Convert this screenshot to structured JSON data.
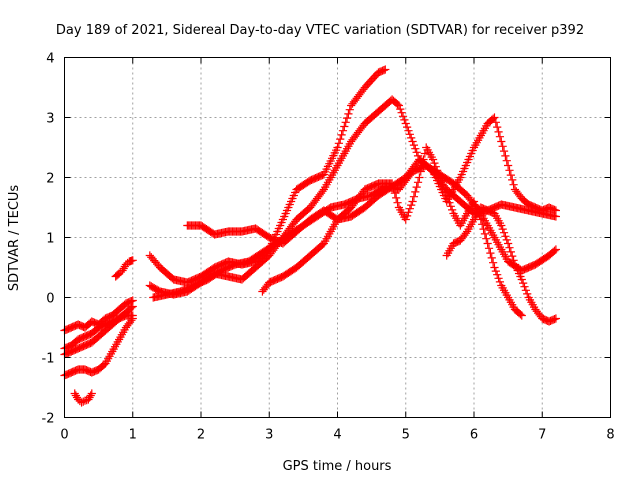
{
  "chart_data": {
    "type": "scatter",
    "title": "Day 189 of 2021, Sidereal Day-to-day VTEC variation (SDTVAR) for receiver p392",
    "xlabel": "GPS time / hours",
    "ylabel": "SDTVAR / TECUs",
    "xlim": [
      0,
      8
    ],
    "ylim": [
      -2,
      4
    ],
    "xticks": [
      0,
      1,
      2,
      3,
      4,
      5,
      6,
      7,
      8
    ],
    "yticks": [
      -2,
      -1,
      0,
      1,
      2,
      3,
      4
    ],
    "grid": true,
    "marker": "plus",
    "color": "#ff0000",
    "series": [
      {
        "x": [
          0.0,
          0.1,
          0.2,
          0.3,
          0.4,
          0.5,
          0.6,
          0.7,
          0.8,
          0.9,
          1.0
        ],
        "y": [
          -0.55,
          -0.5,
          -0.45,
          -0.5,
          -0.4,
          -0.45,
          -0.35,
          -0.3,
          -0.2,
          -0.1,
          -0.05
        ]
      },
      {
        "x": [
          0.0,
          0.1,
          0.2,
          0.3,
          0.4,
          0.5,
          0.6,
          0.7,
          0.8,
          0.9,
          1.0
        ],
        "y": [
          -0.85,
          -0.8,
          -0.7,
          -0.65,
          -0.6,
          -0.5,
          -0.45,
          -0.4,
          -0.35,
          -0.3,
          -0.3
        ]
      },
      {
        "x": [
          0.0,
          0.1,
          0.2,
          0.3,
          0.4,
          0.5,
          0.6,
          0.7,
          0.8,
          0.9,
          1.0
        ],
        "y": [
          -0.95,
          -0.9,
          -0.85,
          -0.8,
          -0.75,
          -0.65,
          -0.55,
          -0.45,
          -0.35,
          -0.25,
          -0.15
        ]
      },
      {
        "x": [
          0.0,
          0.1,
          0.2,
          0.3,
          0.4,
          0.5,
          0.6,
          0.7,
          0.8,
          0.9,
          1.0
        ],
        "y": [
          -1.3,
          -1.25,
          -1.2,
          -1.2,
          -1.25,
          -1.2,
          -1.1,
          -0.9,
          -0.7,
          -0.5,
          -0.35
        ]
      },
      {
        "x": [
          0.15,
          0.2,
          0.25,
          0.3,
          0.35,
          0.4
        ],
        "y": [
          -1.6,
          -1.7,
          -1.75,
          -1.72,
          -1.7,
          -1.6
        ]
      },
      {
        "x": [
          0.75,
          0.8,
          0.85,
          0.9,
          0.95,
          1.0
        ],
        "y": [
          0.35,
          0.4,
          0.45,
          0.55,
          0.6,
          0.62
        ]
      },
      {
        "x": [
          1.25,
          1.4,
          1.6,
          1.8,
          2.0,
          2.2,
          2.4,
          2.6,
          2.8,
          3.0,
          3.2,
          3.4,
          3.6,
          3.8,
          4.0,
          4.2,
          4.4,
          4.6,
          4.7
        ],
        "y": [
          0.7,
          0.5,
          0.3,
          0.25,
          0.35,
          0.5,
          0.6,
          0.55,
          0.6,
          0.8,
          1.3,
          1.8,
          1.95,
          2.05,
          2.5,
          3.2,
          3.5,
          3.75,
          3.8
        ]
      },
      {
        "x": [
          1.25,
          1.4,
          1.6,
          1.8,
          2.0,
          2.2,
          2.4,
          2.6,
          2.8,
          3.0,
          3.2,
          3.4,
          3.6,
          3.8,
          4.0,
          4.2,
          4.4,
          4.6,
          4.8,
          4.9,
          5.0,
          5.1,
          5.2,
          5.4,
          5.6,
          5.8,
          6.0,
          6.2,
          6.4,
          6.6,
          6.8,
          7.0,
          7.2
        ],
        "y": [
          0.2,
          0.1,
          0.05,
          0.1,
          0.25,
          0.4,
          0.35,
          0.3,
          0.5,
          0.7,
          1.0,
          1.3,
          1.5,
          1.8,
          2.2,
          2.6,
          2.9,
          3.1,
          3.3,
          3.2,
          2.9,
          2.6,
          2.3,
          2.1,
          1.8,
          1.6,
          1.4,
          1.45,
          1.55,
          1.5,
          1.45,
          1.4,
          1.35
        ]
      },
      {
        "x": [
          1.3,
          1.5,
          1.7,
          1.9,
          2.1,
          2.3,
          2.5,
          2.7,
          2.9,
          3.1,
          3.3,
          3.5,
          3.7,
          3.9,
          4.1,
          4.3,
          4.5,
          4.7,
          4.9,
          5.1,
          5.3,
          5.5,
          5.7,
          5.9,
          6.1,
          6.3,
          6.5,
          6.7,
          6.9,
          7.1,
          7.2
        ],
        "y": [
          0.0,
          0.05,
          0.1,
          0.2,
          0.3,
          0.45,
          0.55,
          0.6,
          0.75,
          0.9,
          1.05,
          1.2,
          1.35,
          1.5,
          1.55,
          1.65,
          1.7,
          1.85,
          1.8,
          2.1,
          2.2,
          2.05,
          1.9,
          1.7,
          1.4,
          1.0,
          0.6,
          0.45,
          0.55,
          0.7,
          0.8
        ]
      },
      {
        "x": [
          1.8,
          2.0,
          2.2,
          2.4,
          2.6,
          2.8,
          3.0,
          3.2,
          3.4,
          3.6,
          3.8,
          4.0,
          4.2,
          4.4,
          4.6,
          4.8,
          5.0,
          5.2,
          5.4,
          5.6,
          5.8,
          6.0,
          6.2,
          6.3,
          6.4,
          6.5,
          6.6,
          6.7,
          6.8,
          6.9,
          7.0,
          7.1,
          7.2
        ],
        "y": [
          1.2,
          1.2,
          1.05,
          1.1,
          1.1,
          1.15,
          1.0,
          0.9,
          1.1,
          1.3,
          1.45,
          1.3,
          1.35,
          1.5,
          1.7,
          1.85,
          2.0,
          2.3,
          2.1,
          1.6,
          2.0,
          2.5,
          2.9,
          3.0,
          2.6,
          2.2,
          1.8,
          1.65,
          1.55,
          1.5,
          1.45,
          1.5,
          1.45
        ]
      },
      {
        "x": [
          2.9,
          3.0,
          3.2,
          3.4,
          3.6,
          3.8,
          4.0,
          4.2,
          4.4,
          4.6,
          4.8,
          4.9,
          5.0,
          5.1,
          5.2,
          5.3,
          5.4,
          5.5,
          5.6,
          5.7,
          5.8,
          5.9,
          6.0,
          6.1,
          6.2,
          6.3,
          6.4,
          6.5,
          6.6,
          6.7
        ],
        "y": [
          0.1,
          0.25,
          0.35,
          0.5,
          0.7,
          0.9,
          1.3,
          1.5,
          1.8,
          1.9,
          1.9,
          1.5,
          1.3,
          1.6,
          2.0,
          2.5,
          2.3,
          2.0,
          1.7,
          1.4,
          1.2,
          1.4,
          1.6,
          1.3,
          0.9,
          0.5,
          0.2,
          0.0,
          -0.2,
          -0.3
        ]
      },
      {
        "x": [
          5.6,
          5.7,
          5.8,
          5.9,
          6.0,
          6.1,
          6.2,
          6.3,
          6.4,
          6.5,
          6.6,
          6.7,
          6.8,
          6.9,
          7.0,
          7.1,
          7.2
        ],
        "y": [
          0.7,
          0.9,
          0.95,
          1.1,
          1.3,
          1.5,
          1.45,
          1.4,
          1.2,
          0.9,
          0.55,
          0.3,
          0.0,
          -0.2,
          -0.35,
          -0.4,
          -0.35
        ]
      }
    ]
  }
}
